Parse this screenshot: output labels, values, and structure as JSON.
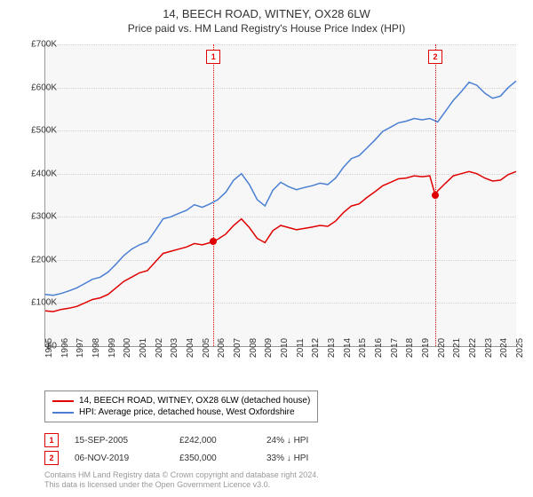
{
  "title": "14, BEECH ROAD, WITNEY, OX28 6LW",
  "subtitle": "Price paid vs. HM Land Registry's House Price Index (HPI)",
  "chart": {
    "type": "line",
    "background_color": "#f7f7f8",
    "grid_color": "#d0d0d0",
    "ylim": [
      0,
      700000
    ],
    "ytick_step": 100000,
    "ytick_labels": [
      "£0",
      "£100K",
      "£200K",
      "£300K",
      "£400K",
      "£500K",
      "£600K",
      "£700K"
    ],
    "xlim": [
      1995,
      2025
    ],
    "xtick_step": 1,
    "xtick_labels": [
      "1995",
      "1996",
      "1997",
      "1998",
      "1999",
      "2000",
      "2001",
      "2002",
      "2003",
      "2004",
      "2005",
      "2006",
      "2007",
      "2008",
      "2009",
      "2010",
      "2011",
      "2012",
      "2013",
      "2014",
      "2015",
      "2016",
      "2017",
      "2018",
      "2019",
      "2020",
      "2021",
      "2022",
      "2023",
      "2024",
      "2025"
    ],
    "series": [
      {
        "name": "property",
        "label": "14, BEECH ROAD, WITNEY, OX28 6LW (detached house)",
        "color": "#e00000",
        "line_width": 1.5,
        "points": [
          [
            1995,
            82000
          ],
          [
            1995.5,
            80000
          ],
          [
            1996,
            85000
          ],
          [
            1996.5,
            88000
          ],
          [
            1997,
            92000
          ],
          [
            1997.5,
            100000
          ],
          [
            1998,
            108000
          ],
          [
            1998.5,
            112000
          ],
          [
            1999,
            120000
          ],
          [
            1999.5,
            135000
          ],
          [
            2000,
            150000
          ],
          [
            2000.5,
            160000
          ],
          [
            2001,
            170000
          ],
          [
            2001.5,
            175000
          ],
          [
            2002,
            195000
          ],
          [
            2002.5,
            215000
          ],
          [
            2003,
            220000
          ],
          [
            2003.5,
            225000
          ],
          [
            2004,
            230000
          ],
          [
            2004.5,
            238000
          ],
          [
            2005,
            235000
          ],
          [
            2005.5,
            240000
          ],
          [
            2006,
            248000
          ],
          [
            2006.5,
            260000
          ],
          [
            2007,
            280000
          ],
          [
            2007.5,
            295000
          ],
          [
            2008,
            275000
          ],
          [
            2008.5,
            250000
          ],
          [
            2009,
            240000
          ],
          [
            2009.5,
            268000
          ],
          [
            2010,
            280000
          ],
          [
            2010.5,
            275000
          ],
          [
            2011,
            270000
          ],
          [
            2011.5,
            273000
          ],
          [
            2012,
            276000
          ],
          [
            2012.5,
            280000
          ],
          [
            2013,
            278000
          ],
          [
            2013.5,
            290000
          ],
          [
            2014,
            310000
          ],
          [
            2014.5,
            325000
          ],
          [
            2015,
            330000
          ],
          [
            2015.5,
            345000
          ],
          [
            2016,
            358000
          ],
          [
            2016.5,
            372000
          ],
          [
            2017,
            380000
          ],
          [
            2017.5,
            388000
          ],
          [
            2018,
            390000
          ],
          [
            2018.5,
            395000
          ],
          [
            2019,
            393000
          ],
          [
            2019.5,
            395000
          ],
          [
            2019.85,
            350000
          ],
          [
            2020,
            360000
          ],
          [
            2020.5,
            378000
          ],
          [
            2021,
            395000
          ],
          [
            2021.5,
            400000
          ],
          [
            2022,
            405000
          ],
          [
            2022.5,
            400000
          ],
          [
            2023,
            390000
          ],
          [
            2023.5,
            383000
          ],
          [
            2024,
            385000
          ],
          [
            2024.5,
            398000
          ],
          [
            2025,
            405000
          ]
        ]
      },
      {
        "name": "hpi",
        "label": "HPI: Average price, detached house, West Oxfordshire",
        "color": "#4a7fd1",
        "line_width": 1.5,
        "points": [
          [
            1995,
            120000
          ],
          [
            1995.5,
            118000
          ],
          [
            1996,
            122000
          ],
          [
            1996.5,
            128000
          ],
          [
            1997,
            135000
          ],
          [
            1997.5,
            145000
          ],
          [
            1998,
            155000
          ],
          [
            1998.5,
            160000
          ],
          [
            1999,
            172000
          ],
          [
            1999.5,
            190000
          ],
          [
            2000,
            210000
          ],
          [
            2000.5,
            225000
          ],
          [
            2001,
            235000
          ],
          [
            2001.5,
            242000
          ],
          [
            2002,
            268000
          ],
          [
            2002.5,
            295000
          ],
          [
            2003,
            300000
          ],
          [
            2003.5,
            308000
          ],
          [
            2004,
            315000
          ],
          [
            2004.5,
            328000
          ],
          [
            2005,
            322000
          ],
          [
            2005.5,
            330000
          ],
          [
            2006,
            340000
          ],
          [
            2006.5,
            357000
          ],
          [
            2007,
            385000
          ],
          [
            2007.5,
            400000
          ],
          [
            2008,
            375000
          ],
          [
            2008.5,
            340000
          ],
          [
            2009,
            325000
          ],
          [
            2009.5,
            362000
          ],
          [
            2010,
            380000
          ],
          [
            2010.5,
            370000
          ],
          [
            2011,
            363000
          ],
          [
            2011.5,
            368000
          ],
          [
            2012,
            372000
          ],
          [
            2012.5,
            378000
          ],
          [
            2013,
            375000
          ],
          [
            2013.5,
            390000
          ],
          [
            2014,
            415000
          ],
          [
            2014.5,
            435000
          ],
          [
            2015,
            442000
          ],
          [
            2015.5,
            460000
          ],
          [
            2016,
            478000
          ],
          [
            2016.5,
            498000
          ],
          [
            2017,
            508000
          ],
          [
            2017.5,
            518000
          ],
          [
            2018,
            522000
          ],
          [
            2018.5,
            528000
          ],
          [
            2019,
            525000
          ],
          [
            2019.5,
            528000
          ],
          [
            2020,
            520000
          ],
          [
            2020.5,
            545000
          ],
          [
            2021,
            570000
          ],
          [
            2021.5,
            590000
          ],
          [
            2022,
            612000
          ],
          [
            2022.5,
            605000
          ],
          [
            2023,
            587000
          ],
          [
            2023.5,
            575000
          ],
          [
            2024,
            580000
          ],
          [
            2024.5,
            600000
          ],
          [
            2025,
            615000
          ]
        ]
      }
    ],
    "event_markers": [
      {
        "n": "1",
        "x": 2005.71,
        "color": "#e00000",
        "point_y": 242000
      },
      {
        "n": "2",
        "x": 2019.85,
        "color": "#e00000",
        "point_y": 350000
      }
    ]
  },
  "legend_items": [
    {
      "color": "#e00000",
      "label": "14, BEECH ROAD, WITNEY, OX28 6LW (detached house)"
    },
    {
      "color": "#4a7fd1",
      "label": "HPI: Average price, detached house, West Oxfordshire"
    }
  ],
  "events": [
    {
      "n": "1",
      "color": "#e00000",
      "date": "15-SEP-2005",
      "price": "£242,000",
      "delta": "24% ↓ HPI"
    },
    {
      "n": "2",
      "color": "#e00000",
      "date": "06-NOV-2019",
      "price": "£350,000",
      "delta": "33% ↓ HPI"
    }
  ],
  "credit_line1": "Contains HM Land Registry data © Crown copyright and database right 2024.",
  "credit_line2": "This data is licensed under the Open Government Licence v3.0."
}
